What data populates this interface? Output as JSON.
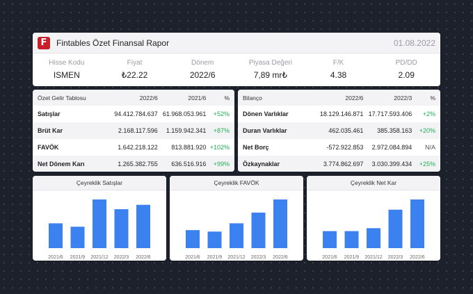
{
  "header": {
    "logo_letter": "F",
    "title": "Fintables Özet Finansal Rapor",
    "date": "01.08.2022",
    "metrics": [
      {
        "label": "Hisse Kodu",
        "value": "ISMEN"
      },
      {
        "label": "Fiyat",
        "value": "₺22.22"
      },
      {
        "label": "Dönem",
        "value": "2022/6"
      },
      {
        "label": "Piyasa Değeri",
        "value": "7,89 mr₺"
      },
      {
        "label": "F/K",
        "value": "4.38"
      },
      {
        "label": "PD/DD",
        "value": "2.09"
      }
    ]
  },
  "income": {
    "headers": [
      "Özet Gelir Tablosu",
      "2022/6",
      "2021/6",
      "%"
    ],
    "rows": [
      {
        "name": "Satışlar",
        "a": "94.412.784.637",
        "b": "61.968.053.961",
        "pct": "+52%"
      },
      {
        "name": "Brüt Kar",
        "a": "2.168.117.596",
        "b": "1.159.942.341",
        "pct": "+87%"
      },
      {
        "name": "FAVÖK",
        "a": "1.642.218.122",
        "b": "813.881.920",
        "pct": "+102%"
      },
      {
        "name": "Net Dönem Karı",
        "a": "1.265.382.755",
        "b": "636.516.916",
        "pct": "+99%"
      }
    ]
  },
  "balance": {
    "headers": [
      "Bilanço",
      "2022/6",
      "2022/3",
      "%"
    ],
    "rows": [
      {
        "name": "Dönen Varlıklar",
        "a": "18.129.146.871",
        "b": "17.717.593.406",
        "pct": "+2%"
      },
      {
        "name": "Duran Varlıklar",
        "a": "462.035.461",
        "b": "385.358.163",
        "pct": "+20%"
      },
      {
        "name": "Net Borç",
        "a": "-572.922.853",
        "b": "2.972.084.894",
        "pct": "N/A"
      },
      {
        "name": "Özkaynaklar",
        "a": "3.774.862.697",
        "b": "3.030.399.434",
        "pct": "+25%"
      }
    ]
  },
  "colors": {
    "accent": "#c8202a",
    "bar": "#3b82f0",
    "positive": "#1fae55"
  },
  "chart_data": [
    {
      "type": "bar",
      "title": "Çeyreklik Satışlar",
      "categories": [
        "2021/6",
        "2021/9",
        "2021/12",
        "2022/3",
        "2022/6"
      ],
      "values": [
        0.51,
        0.44,
        1.0,
        0.8,
        0.89
      ]
    },
    {
      "type": "bar",
      "title": "Çeyreklik FAVÖK",
      "categories": [
        "2021/6",
        "2021/9",
        "2021/12",
        "2022/3",
        "2022/6"
      ],
      "values": [
        0.37,
        0.34,
        0.51,
        0.73,
        1.0
      ]
    },
    {
      "type": "bar",
      "title": "Çeyreklik Net Kar",
      "categories": [
        "2021/6",
        "2021/9",
        "2021/12",
        "2022/3",
        "2022/6"
      ],
      "values": [
        0.35,
        0.35,
        0.41,
        0.79,
        1.0
      ]
    }
  ]
}
